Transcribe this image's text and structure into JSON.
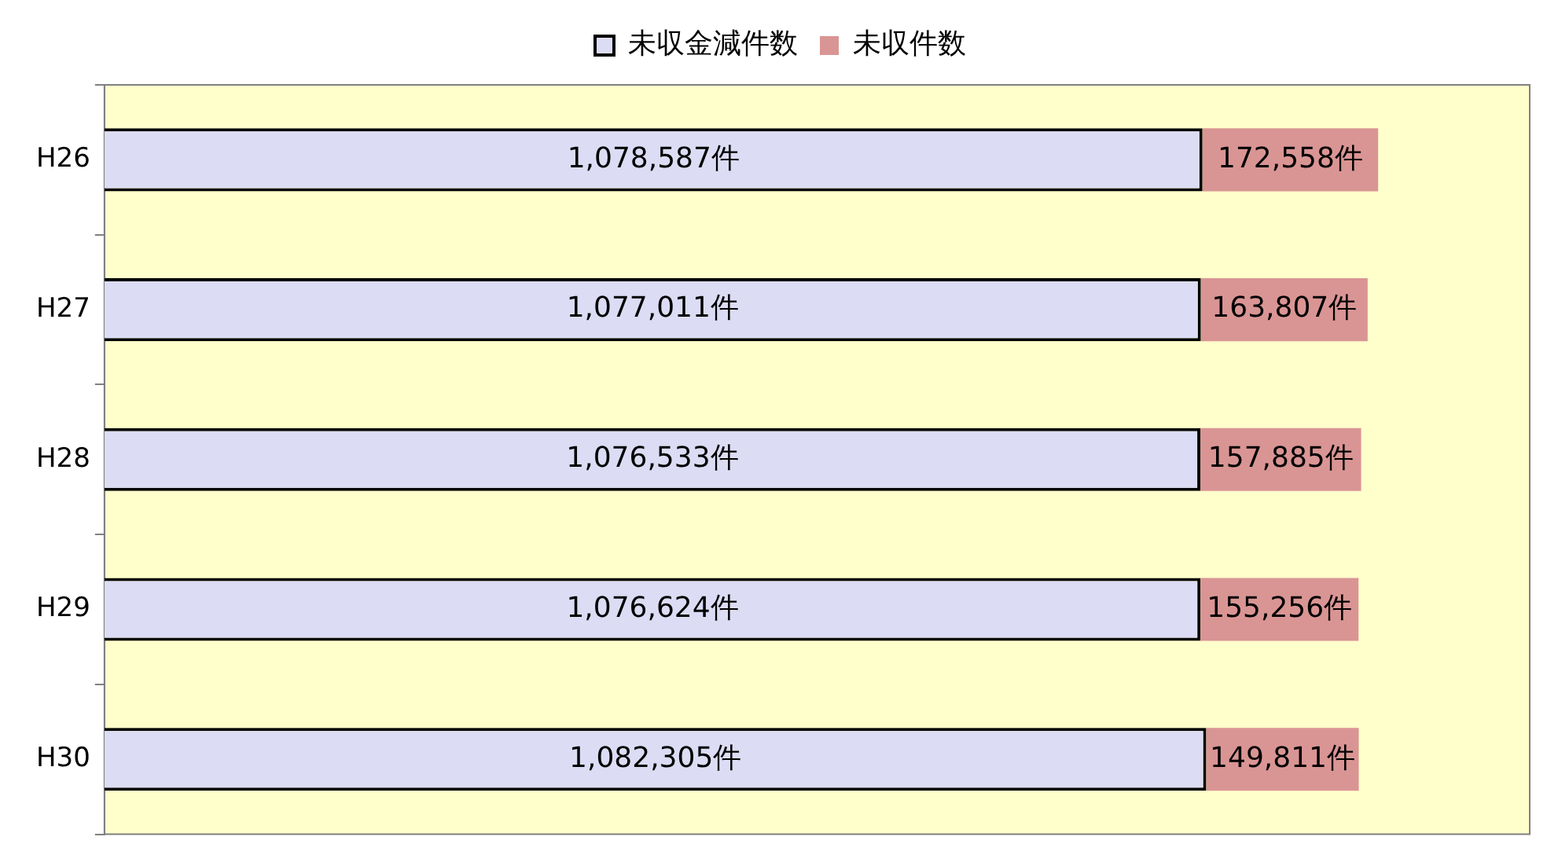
{
  "chart_data": {
    "type": "bar",
    "orientation": "horizontal",
    "stacked": true,
    "categories": [
      "H26",
      "H27",
      "H28",
      "H29",
      "H30"
    ],
    "series": [
      {
        "name": "未収金減件数",
        "color": "#dcdcf4",
        "values": [
          1078587,
          1077011,
          1076533,
          1076624,
          1082305
        ],
        "value_labels": [
          "1,078,587件",
          "1,077,011件",
          "1,076,533件",
          "1,076,624件",
          "1,082,305件"
        ]
      },
      {
        "name": "未収件数",
        "color": "#d99594",
        "values": [
          172558,
          163807,
          157885,
          155256,
          149811
        ],
        "value_labels": [
          "172,558件",
          "163,807件",
          "157,885件",
          "155,256件",
          "149,811件"
        ]
      }
    ],
    "legend": "top",
    "grid": false,
    "tick_labels": "y"
  }
}
